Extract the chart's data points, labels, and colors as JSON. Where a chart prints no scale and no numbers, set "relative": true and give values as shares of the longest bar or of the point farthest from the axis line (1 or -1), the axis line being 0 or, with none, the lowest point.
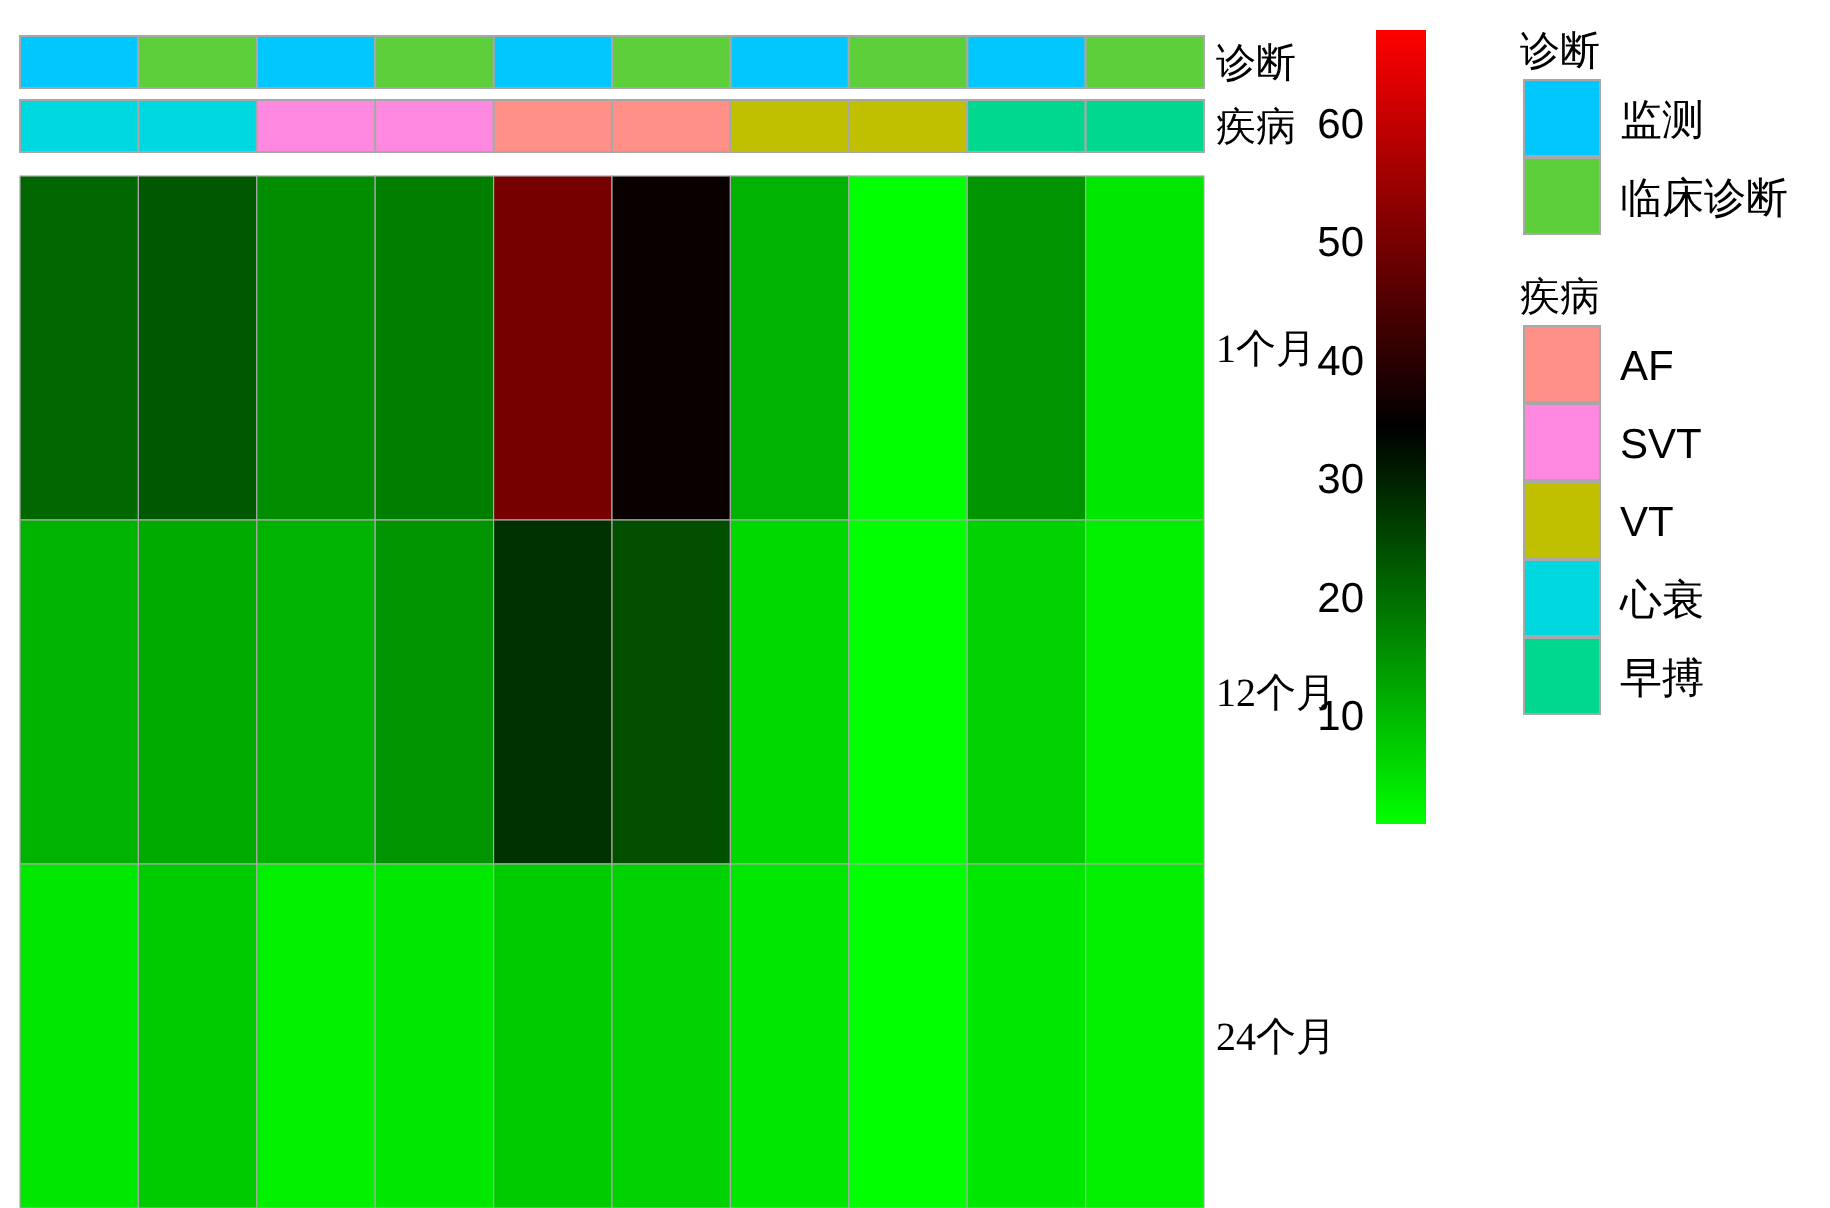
{
  "chart_data": [
    {
      "type": "heatmap",
      "categories": [
        null,
        null,
        null,
        null,
        null,
        null,
        null,
        null,
        null,
        null
      ],
      "y_categories": [
        "1个月",
        "12个月",
        "24个月"
      ],
      "cells": [
        [
          21,
          23,
          16,
          18,
          50,
          36,
          11,
          1,
          15,
          4
        ],
        [
          11,
          12,
          11,
          15,
          28,
          24,
          6,
          1,
          7,
          3
        ],
        [
          4,
          8,
          3,
          4,
          8,
          7,
          4,
          1,
          4,
          3
        ]
      ],
      "clim": [
        1,
        68
      ],
      "cticks": [
        10,
        20,
        30,
        40,
        50,
        60
      ],
      "colors": [
        "#00ff00",
        "#000000",
        "#ff0000"
      ]
    },
    {
      "type": "bar",
      "relative": true,
      "categories": [
        null,
        null,
        null,
        null,
        null,
        null,
        null,
        null,
        null,
        null
      ],
      "ylabel": "诊断",
      "legend_title": "诊断",
      "legend": "right",
      "series": [
        {
          "name": "监测",
          "color": "#00c8ff",
          "values": [
            1,
            null,
            1,
            null,
            1,
            null,
            1,
            null,
            1,
            null
          ]
        },
        {
          "name": "临床诊断",
          "color": "#5ccf3a",
          "values": [
            null,
            1,
            null,
            1,
            null,
            1,
            null,
            1,
            null,
            1
          ]
        }
      ]
    },
    {
      "type": "bar",
      "relative": true,
      "categories": [
        null,
        null,
        null,
        null,
        null,
        null,
        null,
        null,
        null,
        null
      ],
      "ylabel": "疾病",
      "legend_title": "疾病",
      "legend": "right",
      "series": [
        {
          "name": "AF",
          "color": "#ff9088",
          "values": [
            null,
            null,
            null,
            null,
            1,
            1,
            null,
            null,
            null,
            null
          ]
        },
        {
          "name": "SVT",
          "color": "#ff88e0",
          "values": [
            null,
            null,
            1,
            1,
            null,
            null,
            null,
            null,
            null,
            null
          ]
        },
        {
          "name": "VT",
          "color": "#c0c000",
          "values": [
            null,
            null,
            null,
            null,
            null,
            null,
            1,
            1,
            null,
            null
          ]
        },
        {
          "name": "心衰",
          "color": "#00d8e0",
          "values": [
            1,
            1,
            null,
            null,
            null,
            null,
            null,
            null,
            null,
            null
          ]
        },
        {
          "name": "早搏",
          "color": "#00d890",
          "values": [
            null,
            null,
            null,
            null,
            null,
            null,
            null,
            null,
            1,
            1
          ]
        }
      ]
    }
  ]
}
